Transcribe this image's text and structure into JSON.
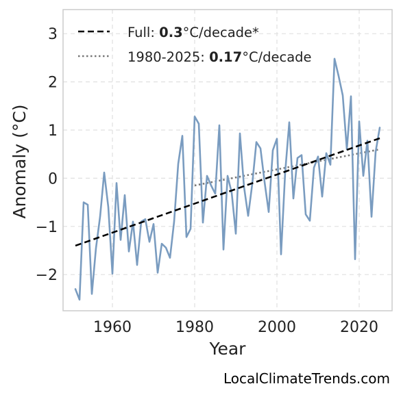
{
  "chart_data": {
    "type": "line",
    "xlabel": "Year",
    "ylabel": "Anomaly (°C)",
    "xlim": [
      1948,
      2028
    ],
    "ylim": [
      -2.75,
      3.5
    ],
    "xticks": [
      1960,
      1980,
      2000,
      2020
    ],
    "yticks": [
      -2,
      -1,
      0,
      1,
      2,
      3
    ],
    "ytick_labels": [
      "−2",
      "−1",
      "0",
      "1",
      "2",
      "3"
    ],
    "grid": true,
    "legend_placement": "top-left",
    "colors": {
      "series": "#7a9cc0",
      "full_trend": "#000000",
      "recent_trend": "#777777",
      "grid": "#e0e0e0",
      "frame": "#cccccc"
    },
    "legend": [
      {
        "prefix": "Full: ",
        "value": "0.3",
        "suffix": "°C/decade*"
      },
      {
        "prefix": "1980-2025: ",
        "value": "0.17",
        "suffix": "°C/decade"
      }
    ],
    "series": [
      {
        "x": [
          1951,
          1952,
          1953,
          1954,
          1955,
          1956,
          1957,
          1958,
          1959,
          1960,
          1961,
          1962,
          1963,
          1964,
          1965,
          1966,
          1967,
          1968,
          1969,
          1970,
          1971,
          1972,
          1973,
          1974,
          1975,
          1976,
          1977,
          1978,
          1979,
          1980,
          1981,
          1982,
          1983,
          1984,
          1985,
          1986,
          1987,
          1988,
          1989,
          1990,
          1991,
          1992,
          1993,
          1994,
          1995,
          1996,
          1997,
          1998,
          1999,
          2000,
          2001,
          2002,
          2003,
          2004,
          2005,
          2006,
          2007,
          2008,
          2009,
          2010,
          2011,
          2012,
          2013,
          2014,
          2015,
          2016,
          2017,
          2018,
          2019,
          2020,
          2021,
          2022,
          2023,
          2024,
          2025
        ],
        "y": [
          -2.3,
          -2.52,
          -0.5,
          -0.55,
          -2.4,
          -1.45,
          -0.8,
          0.12,
          -0.6,
          -1.98,
          -0.1,
          -1.28,
          -0.35,
          -1.52,
          -0.9,
          -1.8,
          -0.9,
          -0.85,
          -1.32,
          -0.95,
          -1.96,
          -1.36,
          -1.44,
          -1.65,
          -0.9,
          0.3,
          0.88,
          -1.22,
          -1.05,
          1.28,
          1.13,
          -0.92,
          0.05,
          -0.15,
          -0.32,
          1.1,
          -1.48,
          0.05,
          -0.3,
          -1.15,
          0.93,
          -0.18,
          -0.78,
          -0.12,
          0.75,
          0.62,
          -0.08,
          -0.7,
          0.58,
          0.82,
          -1.58,
          0.12,
          1.16,
          -0.42,
          0.42,
          0.48,
          -0.75,
          -0.88,
          0.22,
          0.45,
          -0.38,
          0.52,
          0.28,
          2.48,
          2.12,
          1.72,
          0.6,
          1.7,
          -1.68,
          1.18,
          0.05,
          0.78,
          -0.8,
          0.55,
          1.05
        ]
      }
    ],
    "trend_full": {
      "x": [
        1951,
        2025
      ],
      "y": [
        -1.4,
        0.83
      ]
    },
    "trend_recent": {
      "x": [
        1980,
        2025
      ],
      "y": [
        -0.15,
        0.6
      ]
    }
  },
  "footer": {
    "credit": "LocalClimateTrends.com"
  }
}
